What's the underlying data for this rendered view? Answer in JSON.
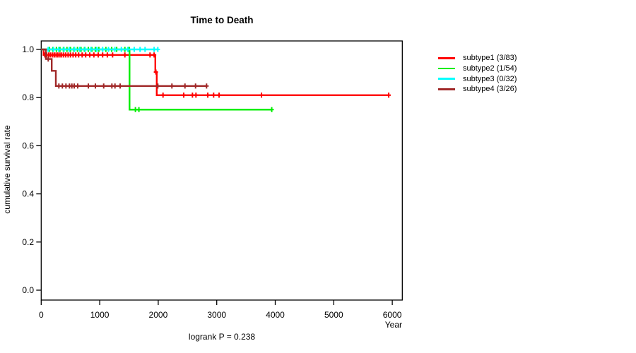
{
  "title": "Time to Death",
  "footer": {
    "text": "logrank P = 0.238"
  },
  "legend": {
    "items": [
      {
        "label": "subtype1 (3/83)",
        "color": "#ff0000"
      },
      {
        "label": "subtype2 (1/54)",
        "color": "#00ee00"
      },
      {
        "label": "subtype3 (0/32)",
        "color": "#00ffff"
      },
      {
        "label": "subtype4 (3/26)",
        "color": "#a02828"
      }
    ]
  },
  "chart_data": {
    "type": "line",
    "subtype": "kaplan-meier-step",
    "title": "Time to Death",
    "xlabel": "Year",
    "ylabel": "cumulative survival rate",
    "annotation": "logrank P = 0.238",
    "xlim": [
      0,
      6170
    ],
    "ylim": [
      0,
      1
    ],
    "xticks": [
      0,
      1000,
      2000,
      3000,
      4000,
      5000,
      6000
    ],
    "yticks": [
      0.0,
      0.2,
      0.4,
      0.6,
      0.8,
      1.0
    ],
    "grid": false,
    "legend_position": "right-outside",
    "series": [
      {
        "name": "subtype1",
        "label": "subtype1 (3/83)",
        "color": "#ff0000",
        "events": "3/83",
        "steps": [
          [
            0,
            1.0
          ],
          [
            40,
            1.0
          ],
          [
            40,
            0.977
          ],
          [
            1950,
            0.977
          ],
          [
            1950,
            0.906
          ],
          [
            1975,
            0.906
          ],
          [
            1975,
            0.81
          ],
          [
            5939,
            0.81
          ]
        ],
        "censors": [
          [
            62,
            0.977
          ],
          [
            95,
            0.977
          ],
          [
            130,
            0.977
          ],
          [
            160,
            0.977
          ],
          [
            195,
            0.977
          ],
          [
            225,
            0.977
          ],
          [
            255,
            0.977
          ],
          [
            285,
            0.977
          ],
          [
            320,
            0.977
          ],
          [
            350,
            0.977
          ],
          [
            385,
            0.977
          ],
          [
            420,
            0.977
          ],
          [
            460,
            0.977
          ],
          [
            500,
            0.977
          ],
          [
            545,
            0.977
          ],
          [
            590,
            0.977
          ],
          [
            640,
            0.977
          ],
          [
            700,
            0.977
          ],
          [
            760,
            0.977
          ],
          [
            830,
            0.977
          ],
          [
            900,
            0.977
          ],
          [
            975,
            0.977
          ],
          [
            1050,
            0.977
          ],
          [
            1130,
            0.977
          ],
          [
            1220,
            0.977
          ],
          [
            1430,
            0.977
          ],
          [
            1860,
            0.977
          ],
          [
            1930,
            0.977
          ],
          [
            1960,
            0.906
          ],
          [
            2082,
            0.81
          ],
          [
            2436,
            0.81
          ],
          [
            2585,
            0.81
          ],
          [
            2645,
            0.81
          ],
          [
            2847,
            0.81
          ],
          [
            2947,
            0.81
          ],
          [
            3040,
            0.81
          ],
          [
            3765,
            0.81
          ],
          [
            5939,
            0.81
          ]
        ]
      },
      {
        "name": "subtype2",
        "label": "subtype2 (1/54)",
        "color": "#00ee00",
        "events": "1/54",
        "steps": [
          [
            0,
            1.0
          ],
          [
            1510,
            1.0
          ],
          [
            1510,
            0.75
          ],
          [
            3940,
            0.75
          ]
        ],
        "censors": [
          [
            140,
            1.0
          ],
          [
            200,
            1.0
          ],
          [
            260,
            1.0
          ],
          [
            320,
            1.0
          ],
          [
            380,
            1.0
          ],
          [
            440,
            1.0
          ],
          [
            500,
            1.0
          ],
          [
            560,
            1.0
          ],
          [
            620,
            1.0
          ],
          [
            680,
            1.0
          ],
          [
            740,
            1.0
          ],
          [
            805,
            1.0
          ],
          [
            865,
            1.0
          ],
          [
            925,
            1.0
          ],
          [
            985,
            1.0
          ],
          [
            1105,
            1.0
          ],
          [
            1205,
            1.0
          ],
          [
            1290,
            1.0
          ],
          [
            1430,
            1.0
          ],
          [
            1495,
            1.0
          ],
          [
            1505,
            1.0
          ],
          [
            1610,
            0.75
          ],
          [
            1670,
            0.75
          ],
          [
            3940,
            0.75
          ]
        ]
      },
      {
        "name": "subtype3",
        "label": "subtype3 (0/32)",
        "color": "#00ffff",
        "events": "0/32",
        "steps": [
          [
            0,
            1.0
          ],
          [
            1993,
            1.0
          ]
        ],
        "censors": [
          [
            120,
            1.0
          ],
          [
            210,
            1.0
          ],
          [
            300,
            1.0
          ],
          [
            390,
            1.0
          ],
          [
            480,
            1.0
          ],
          [
            570,
            1.0
          ],
          [
            660,
            1.0
          ],
          [
            750,
            1.0
          ],
          [
            850,
            1.0
          ],
          [
            950,
            1.0
          ],
          [
            1050,
            1.0
          ],
          [
            1150,
            1.0
          ],
          [
            1260,
            1.0
          ],
          [
            1370,
            1.0
          ],
          [
            1480,
            1.0
          ],
          [
            1590,
            1.0
          ],
          [
            1690,
            1.0
          ],
          [
            1775,
            1.0
          ],
          [
            1930,
            1.0
          ],
          [
            1993,
            1.0
          ]
        ]
      },
      {
        "name": "subtype4",
        "label": "subtype4 (3/26)",
        "color": "#a02828",
        "events": "3/26",
        "steps": [
          [
            0,
            1.0
          ],
          [
            80,
            1.0
          ],
          [
            80,
            0.96
          ],
          [
            180,
            0.96
          ],
          [
            180,
            0.911
          ],
          [
            250,
            0.911
          ],
          [
            250,
            0.848
          ],
          [
            2826,
            0.848
          ]
        ],
        "censors": [
          [
            120,
            0.96
          ],
          [
            302,
            0.848
          ],
          [
            362,
            0.848
          ],
          [
            423,
            0.848
          ],
          [
            483,
            0.848
          ],
          [
            524,
            0.848
          ],
          [
            564,
            0.848
          ],
          [
            624,
            0.848
          ],
          [
            806,
            0.848
          ],
          [
            926,
            0.848
          ],
          [
            1068,
            0.848
          ],
          [
            1208,
            0.848
          ],
          [
            1261,
            0.848
          ],
          [
            1349,
            0.848
          ],
          [
            1993,
            0.848
          ],
          [
            2234,
            0.848
          ],
          [
            2457,
            0.848
          ],
          [
            2638,
            0.848
          ],
          [
            2826,
            0.848
          ]
        ]
      }
    ]
  }
}
